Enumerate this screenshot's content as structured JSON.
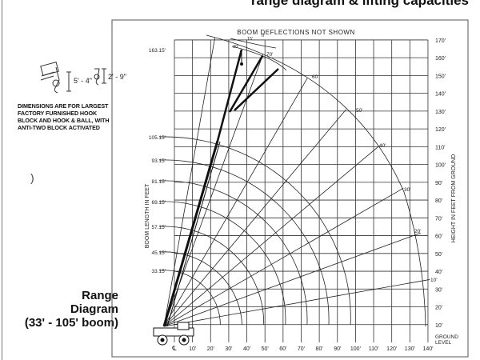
{
  "page_title": "range diagram & lifting capacities",
  "hook_block": {
    "dims": [
      "5' - 4\"",
      "2' - 9\""
    ],
    "note": "DIMENSIONS ARE FOR LARGEST FACTORY FURNISHED HOOK BLOCK AND HOOK & BALL, WITH ANTI-TWO BLOCK ACTIVATED"
  },
  "range_title": [
    "Range",
    "Diagram",
    "(33' - 105' boom)"
  ],
  "paren_mark": ")",
  "diagram": {
    "header": "BOOM DEFLECTIONS NOT SHOWN",
    "left_axis_title": "BOOM LENGTH IN FEET",
    "right_axis_title": "HEIGHT IN FEET FROM GROUND",
    "boom_lengths": [
      "163.15'",
      "105.15'",
      "93.15'",
      "81.15'",
      "69.15'",
      "57.15'",
      "45.15'",
      "33.15'"
    ],
    "height_labels": [
      "170'",
      "160'",
      "150'",
      "140'",
      "130'",
      "120'",
      "110'",
      "100'",
      "90'",
      "80'",
      "70'",
      "60'",
      "50'",
      "40'",
      "30'",
      "20'",
      "10'"
    ],
    "ground_label": [
      "GROUND",
      "LEVEL"
    ],
    "centerline_label": "℄",
    "radius_labels": [
      "10'",
      "20'",
      "30'",
      "40'",
      "50'",
      "60'",
      "70'",
      "80'",
      "90'",
      "100'",
      "110'",
      "120'",
      "130'",
      "140'"
    ],
    "angle_labels": [
      "10'",
      "20'",
      "30'",
      "40'",
      "50'",
      "60'",
      "70'"
    ],
    "jib_offset_labels": [
      "30'",
      "15'",
      "0'"
    ]
  }
}
